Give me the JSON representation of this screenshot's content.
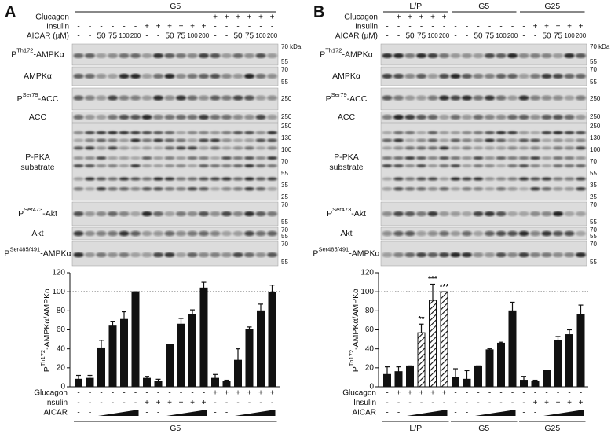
{
  "panels": [
    {
      "letter": "A",
      "header_groups": [
        "G5"
      ],
      "conditions": [
        {
          "label": "Glucagon",
          "marks": [
            "-",
            "-",
            "-",
            "-",
            "-",
            "-",
            "-",
            "-",
            "-",
            "-",
            "-",
            "-",
            "+",
            "+",
            "+",
            "+",
            "+",
            "+"
          ]
        },
        {
          "label": "Insulin",
          "marks": [
            "-",
            "-",
            "-",
            "-",
            "-",
            "-",
            "+",
            "+",
            "+",
            "+",
            "+",
            "+",
            "-",
            "-",
            "-",
            "-",
            "-",
            "-"
          ]
        },
        {
          "label": "AICAR (µM)",
          "marks": [
            "-",
            "-",
            "50",
            "75",
            "100",
            "200",
            "-",
            "-",
            "50",
            "75",
            "100",
            "200",
            "-",
            "-",
            "50",
            "75",
            "100",
            "200"
          ]
        }
      ],
      "blots": [
        {
          "label": {
            "prefix": "P",
            "sup": "Th172",
            "rest": "-AMPKα"
          },
          "markers": [
            "70 kDa",
            "55"
          ]
        },
        {
          "label": {
            "prefix": "AMPKα"
          },
          "markers": [
            "70",
            "55"
          ]
        },
        {
          "label": {
            "prefix": "P",
            "sup": "Ser79",
            "rest": "-ACC"
          },
          "markers": [
            "250"
          ]
        },
        {
          "label": {
            "prefix": "ACC"
          },
          "markers": [
            "250"
          ]
        },
        {
          "label": {
            "prefix": "P-PKA",
            "rest": "substrate"
          },
          "markers": [
            "250",
            "130",
            "100",
            "70",
            "55",
            "35",
            "25"
          ]
        },
        {
          "label": {
            "prefix": "P",
            "sup": "Ser473",
            "rest": "-Akt"
          },
          "markers": [
            "70",
            "55"
          ]
        },
        {
          "label": {
            "prefix": "Akt"
          },
          "markers": [
            "70",
            "55"
          ]
        },
        {
          "label": {
            "prefix": "P",
            "sup": "Ser485/491",
            "rest": "-AMPKα"
          },
          "markers": [
            "70",
            "55"
          ]
        }
      ]
    },
    {
      "letter": "B",
      "header_groups": [
        "L/P",
        "G5",
        "G25"
      ],
      "conditions": [
        {
          "label": "Glucagon",
          "marks": [
            "-",
            "+",
            "+",
            "+",
            "+",
            "+",
            "-",
            "-",
            "-",
            "-",
            "-",
            "-",
            "-",
            "-",
            "-",
            "-",
            "-",
            "-"
          ]
        },
        {
          "label": "Insulin",
          "marks": [
            "-",
            "-",
            "-",
            "-",
            "-",
            "-",
            "-",
            "-",
            "-",
            "-",
            "-",
            "-",
            "-",
            "+",
            "+",
            "+",
            "+",
            "+"
          ]
        },
        {
          "label": "AICAR (µM)",
          "marks": [
            "-",
            "-",
            "50",
            "75",
            "100",
            "200",
            "-",
            "-",
            "50",
            "75",
            "100",
            "200",
            "-",
            "-",
            "50",
            "75",
            "100",
            "200"
          ]
        }
      ],
      "blots": [
        {
          "label": {
            "prefix": "P",
            "sup": "Th172",
            "rest": "-AMPKα"
          },
          "markers": [
            "70 kDa",
            "55"
          ]
        },
        {
          "label": {
            "prefix": "AMPKα"
          },
          "markers": [
            "70",
            "55"
          ]
        },
        {
          "label": {
            "prefix": "P",
            "sup": "Ser79",
            "rest": "-ACC"
          },
          "markers": [
            "250"
          ]
        },
        {
          "label": {
            "prefix": "ACC"
          },
          "markers": [
            "250"
          ]
        },
        {
          "label": {
            "prefix": "P-PKA",
            "rest": "substrate"
          },
          "markers": [
            "250",
            "130",
            "100",
            "70",
            "55",
            "35",
            "25"
          ]
        },
        {
          "label": {
            "prefix": "P",
            "sup": "Ser473",
            "rest": "-Akt"
          },
          "markers": [
            "70",
            "55"
          ]
        },
        {
          "label": {
            "prefix": "Akt"
          },
          "markers": [
            "70",
            "55"
          ]
        },
        {
          "label": {
            "prefix": "P",
            "sup": "Ser485/491",
            "rest": "-AMPKα"
          },
          "markers": [
            "70",
            "55"
          ]
        }
      ]
    }
  ],
  "chart_data": [
    {
      "type": "bar",
      "ylabel": {
        "prefix": "P",
        "sup": "Th172",
        "rest": "-AMPKα/AMPKα"
      },
      "ylim": [
        0,
        120
      ],
      "yticks": [
        0,
        20,
        40,
        60,
        80,
        100,
        120
      ],
      "reference_line": 100,
      "color": "#111111",
      "values": [
        8,
        9,
        41,
        64,
        71,
        100,
        9,
        6,
        45,
        66,
        76,
        104,
        9,
        6,
        28,
        60,
        80,
        99
      ],
      "errors": [
        4,
        3,
        8,
        5,
        8,
        0,
        2,
        2,
        0,
        6,
        5,
        6,
        4,
        1,
        12,
        3,
        7,
        8
      ],
      "patterns": [
        "solid",
        "solid",
        "solid",
        "solid",
        "solid",
        "solid",
        "solid",
        "solid",
        "solid",
        "solid",
        "solid",
        "solid",
        "solid",
        "solid",
        "solid",
        "solid",
        "solid",
        "solid"
      ],
      "annotations": [
        null,
        null,
        null,
        null,
        null,
        null,
        null,
        null,
        null,
        null,
        null,
        null,
        null,
        null,
        null,
        null,
        null,
        null
      ],
      "conditions": [
        {
          "label": "Glucagon",
          "marks": [
            "-",
            "-",
            "-",
            "-",
            "-",
            "-",
            "-",
            "-",
            "-",
            "-",
            "-",
            "-",
            "+",
            "+",
            "+",
            "+",
            "+",
            "+"
          ]
        },
        {
          "label": "Insulin",
          "marks": [
            "-",
            "-",
            "-",
            "-",
            "-",
            "-",
            "+",
            "+",
            "+",
            "+",
            "+",
            "+",
            "-",
            "-",
            "-",
            "-",
            "-",
            "-"
          ]
        },
        {
          "label": "AICAR",
          "marks": [
            "-",
            "-",
            null,
            null,
            null,
            null,
            "-",
            "-",
            null,
            null,
            null,
            null,
            "-",
            "-",
            null,
            null,
            null,
            null
          ]
        }
      ],
      "groups": [
        "G5"
      ]
    },
    {
      "type": "bar",
      "ylabel": {
        "prefix": "P",
        "sup": "Th172",
        "rest": "-AMPKα/AMPKα"
      },
      "ylim": [
        0,
        120
      ],
      "yticks": [
        0,
        20,
        40,
        60,
        80,
        100,
        120
      ],
      "reference_line": 100,
      "color": "#111111",
      "values": [
        13,
        16,
        22,
        57,
        91,
        100,
        10,
        8,
        22,
        39,
        46,
        80,
        7,
        6,
        17,
        49,
        55,
        76
      ],
      "errors": [
        8,
        5,
        0,
        9,
        17,
        0,
        9,
        9,
        0,
        1,
        1,
        9,
        4,
        1,
        0,
        4,
        5,
        10
      ],
      "patterns": [
        "solid",
        "solid",
        "solid",
        "hatched",
        "hatched",
        "hatched",
        "solid",
        "solid",
        "solid",
        "solid",
        "solid",
        "solid",
        "solid",
        "solid",
        "solid",
        "solid",
        "solid",
        "solid"
      ],
      "annotations": [
        null,
        null,
        null,
        "**",
        "***",
        "***",
        null,
        null,
        null,
        null,
        null,
        null,
        null,
        null,
        null,
        null,
        null,
        null
      ],
      "conditions": [
        {
          "label": "Glucagon",
          "marks": [
            "-",
            "+",
            "+",
            "+",
            "+",
            "+",
            "-",
            "-",
            "-",
            "-",
            "-",
            "-",
            "-",
            "-",
            "-",
            "-",
            "-",
            "-"
          ]
        },
        {
          "label": "Insulin",
          "marks": [
            "-",
            "-",
            "-",
            "-",
            "-",
            "-",
            "-",
            "-",
            "-",
            "-",
            "-",
            "-",
            "-",
            "+",
            "+",
            "+",
            "+",
            "+"
          ]
        },
        {
          "label": "AICAR",
          "marks": [
            "-",
            "-",
            null,
            null,
            null,
            null,
            "-",
            "-",
            null,
            null,
            null,
            null,
            "-",
            "-",
            null,
            null,
            null,
            null
          ]
        }
      ],
      "groups": [
        "L/P",
        "G5",
        "G25"
      ]
    }
  ]
}
